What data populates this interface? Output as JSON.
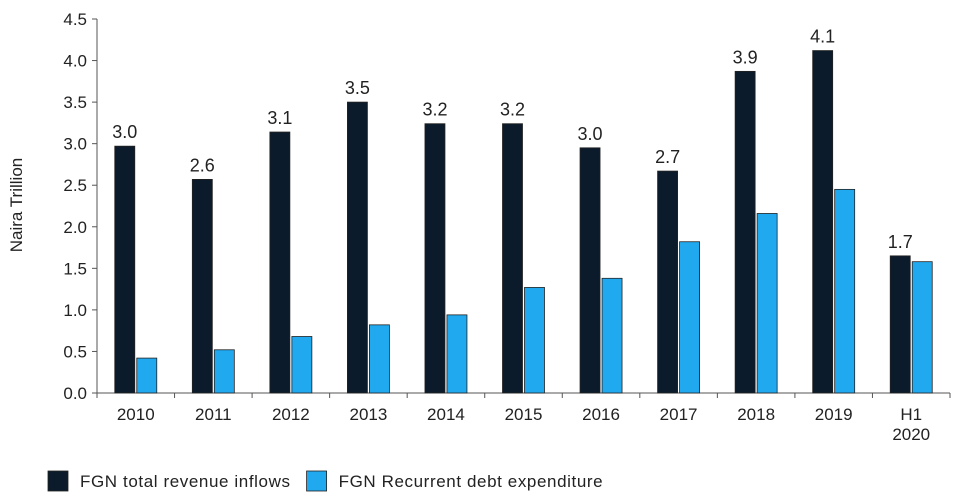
{
  "chart_data": {
    "type": "bar",
    "categories": [
      "2010",
      "2011",
      "2012",
      "2013",
      "2014",
      "2015",
      "2016",
      "2017",
      "2018",
      "2019",
      "H1\n2020"
    ],
    "series": [
      {
        "name": "FGN total revenue inflows",
        "color": "#0b1b2b",
        "values": [
          2.97,
          2.57,
          3.14,
          3.5,
          3.24,
          3.24,
          2.95,
          2.67,
          3.87,
          4.12,
          1.65
        ],
        "labels": [
          "3.0",
          "2.6",
          "3.1",
          "3.5",
          "3.2",
          "3.2",
          "3.0",
          "2.7",
          "3.9",
          "4.1",
          "1.7"
        ]
      },
      {
        "name": "FGN Recurrent debt expenditure",
        "color": "#21a9f0",
        "values": [
          0.42,
          0.52,
          0.68,
          0.82,
          0.94,
          1.27,
          1.38,
          1.82,
          2.16,
          2.45,
          1.58
        ]
      }
    ],
    "title": "",
    "xlabel": "",
    "ylabel": "Naira Trillion",
    "ylim": [
      0,
      4.5
    ],
    "yticks": [
      "0.0",
      "0.5",
      "1.0",
      "1.5",
      "2.0",
      "2.5",
      "3.0",
      "3.5",
      "4.0",
      "4.5"
    ],
    "grid": false,
    "legend": "bottom-left"
  }
}
